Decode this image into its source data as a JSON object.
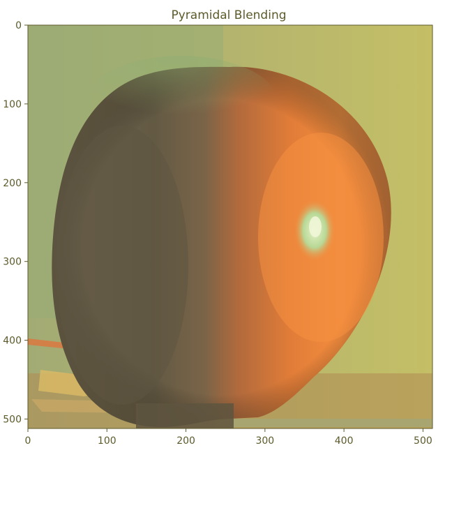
{
  "colors": {
    "text": "#5c5a2a",
    "axis": "#5c5a2a",
    "background": "#ffffff",
    "image_bg_green": "#a6ab70",
    "image_bg_yellow": "#c4bf6a",
    "apple_left_dark": "#6a6048",
    "apple_right_orange": "#ef8a3c",
    "highlight": "#c9e3a0"
  },
  "chart_data": {
    "type": "image",
    "title": "Pyramidal Blending",
    "xlabel": "",
    "ylabel": "",
    "image_size": [
      512,
      512
    ],
    "xlim": [
      0,
      512
    ],
    "ylim": [
      512,
      0
    ],
    "y_inverted": true,
    "grid": false,
    "x_ticks": [
      0,
      100,
      200,
      300,
      400,
      500
    ],
    "y_ticks": [
      0,
      100,
      200,
      300,
      400,
      500
    ],
    "content": "apple-orange pyramid blend (left half apple, right half orange)"
  }
}
